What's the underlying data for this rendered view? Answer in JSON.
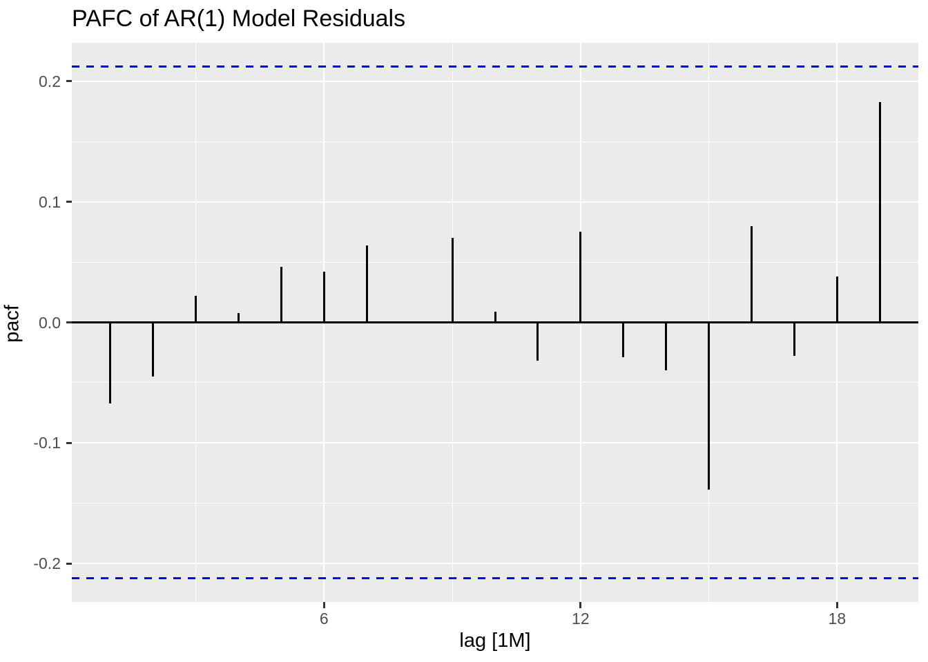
{
  "title": "PAFC of AR(1) Model Residuals",
  "axes": {
    "x_title": "lag [1M]",
    "y_title": "pacf",
    "x_tick_labels": [
      "6",
      "12",
      "18"
    ],
    "y_tick_labels": [
      "0.2",
      "0.1",
      "0.0",
      "-0.1",
      "-0.2"
    ]
  },
  "chart_data": {
    "type": "bar",
    "title": "PAFC of AR(1) Model Residuals",
    "xlabel": "lag [1M]",
    "ylabel": "pacf",
    "x": [
      1,
      2,
      3,
      4,
      5,
      6,
      7,
      8,
      9,
      10,
      11,
      12,
      13,
      14,
      15,
      16,
      17,
      18,
      19
    ],
    "values": [
      -0.067,
      -0.045,
      0.022,
      0.008,
      0.046,
      0.042,
      0.064,
      0.0,
      0.07,
      0.009,
      -0.032,
      0.075,
      -0.029,
      -0.04,
      -0.139,
      0.08,
      -0.028,
      0.038,
      0.183
    ],
    "confidence_bounds": {
      "upper": 0.212,
      "lower": -0.212,
      "line_style": "dashed",
      "color": "#0000FF"
    },
    "xlim": [
      0.1,
      19.9
    ],
    "ylim": [
      -0.232,
      0.232
    ],
    "x_ticks": [
      6,
      12,
      18
    ],
    "x_minor_gridlines": [
      3,
      9,
      15
    ],
    "y_ticks": [
      0.2,
      0.1,
      0.0,
      -0.1,
      -0.2
    ],
    "y_minor_gridlines": [
      0.15,
      0.05,
      -0.05,
      -0.15
    ],
    "grid": true,
    "legend_position": "none",
    "bar_color": "#000000",
    "zero_line_color": "#000000",
    "panel_background": "#EBEBEB",
    "gridline_color": "#FFFFFF",
    "tick_label_color": "#4D4D4D"
  }
}
